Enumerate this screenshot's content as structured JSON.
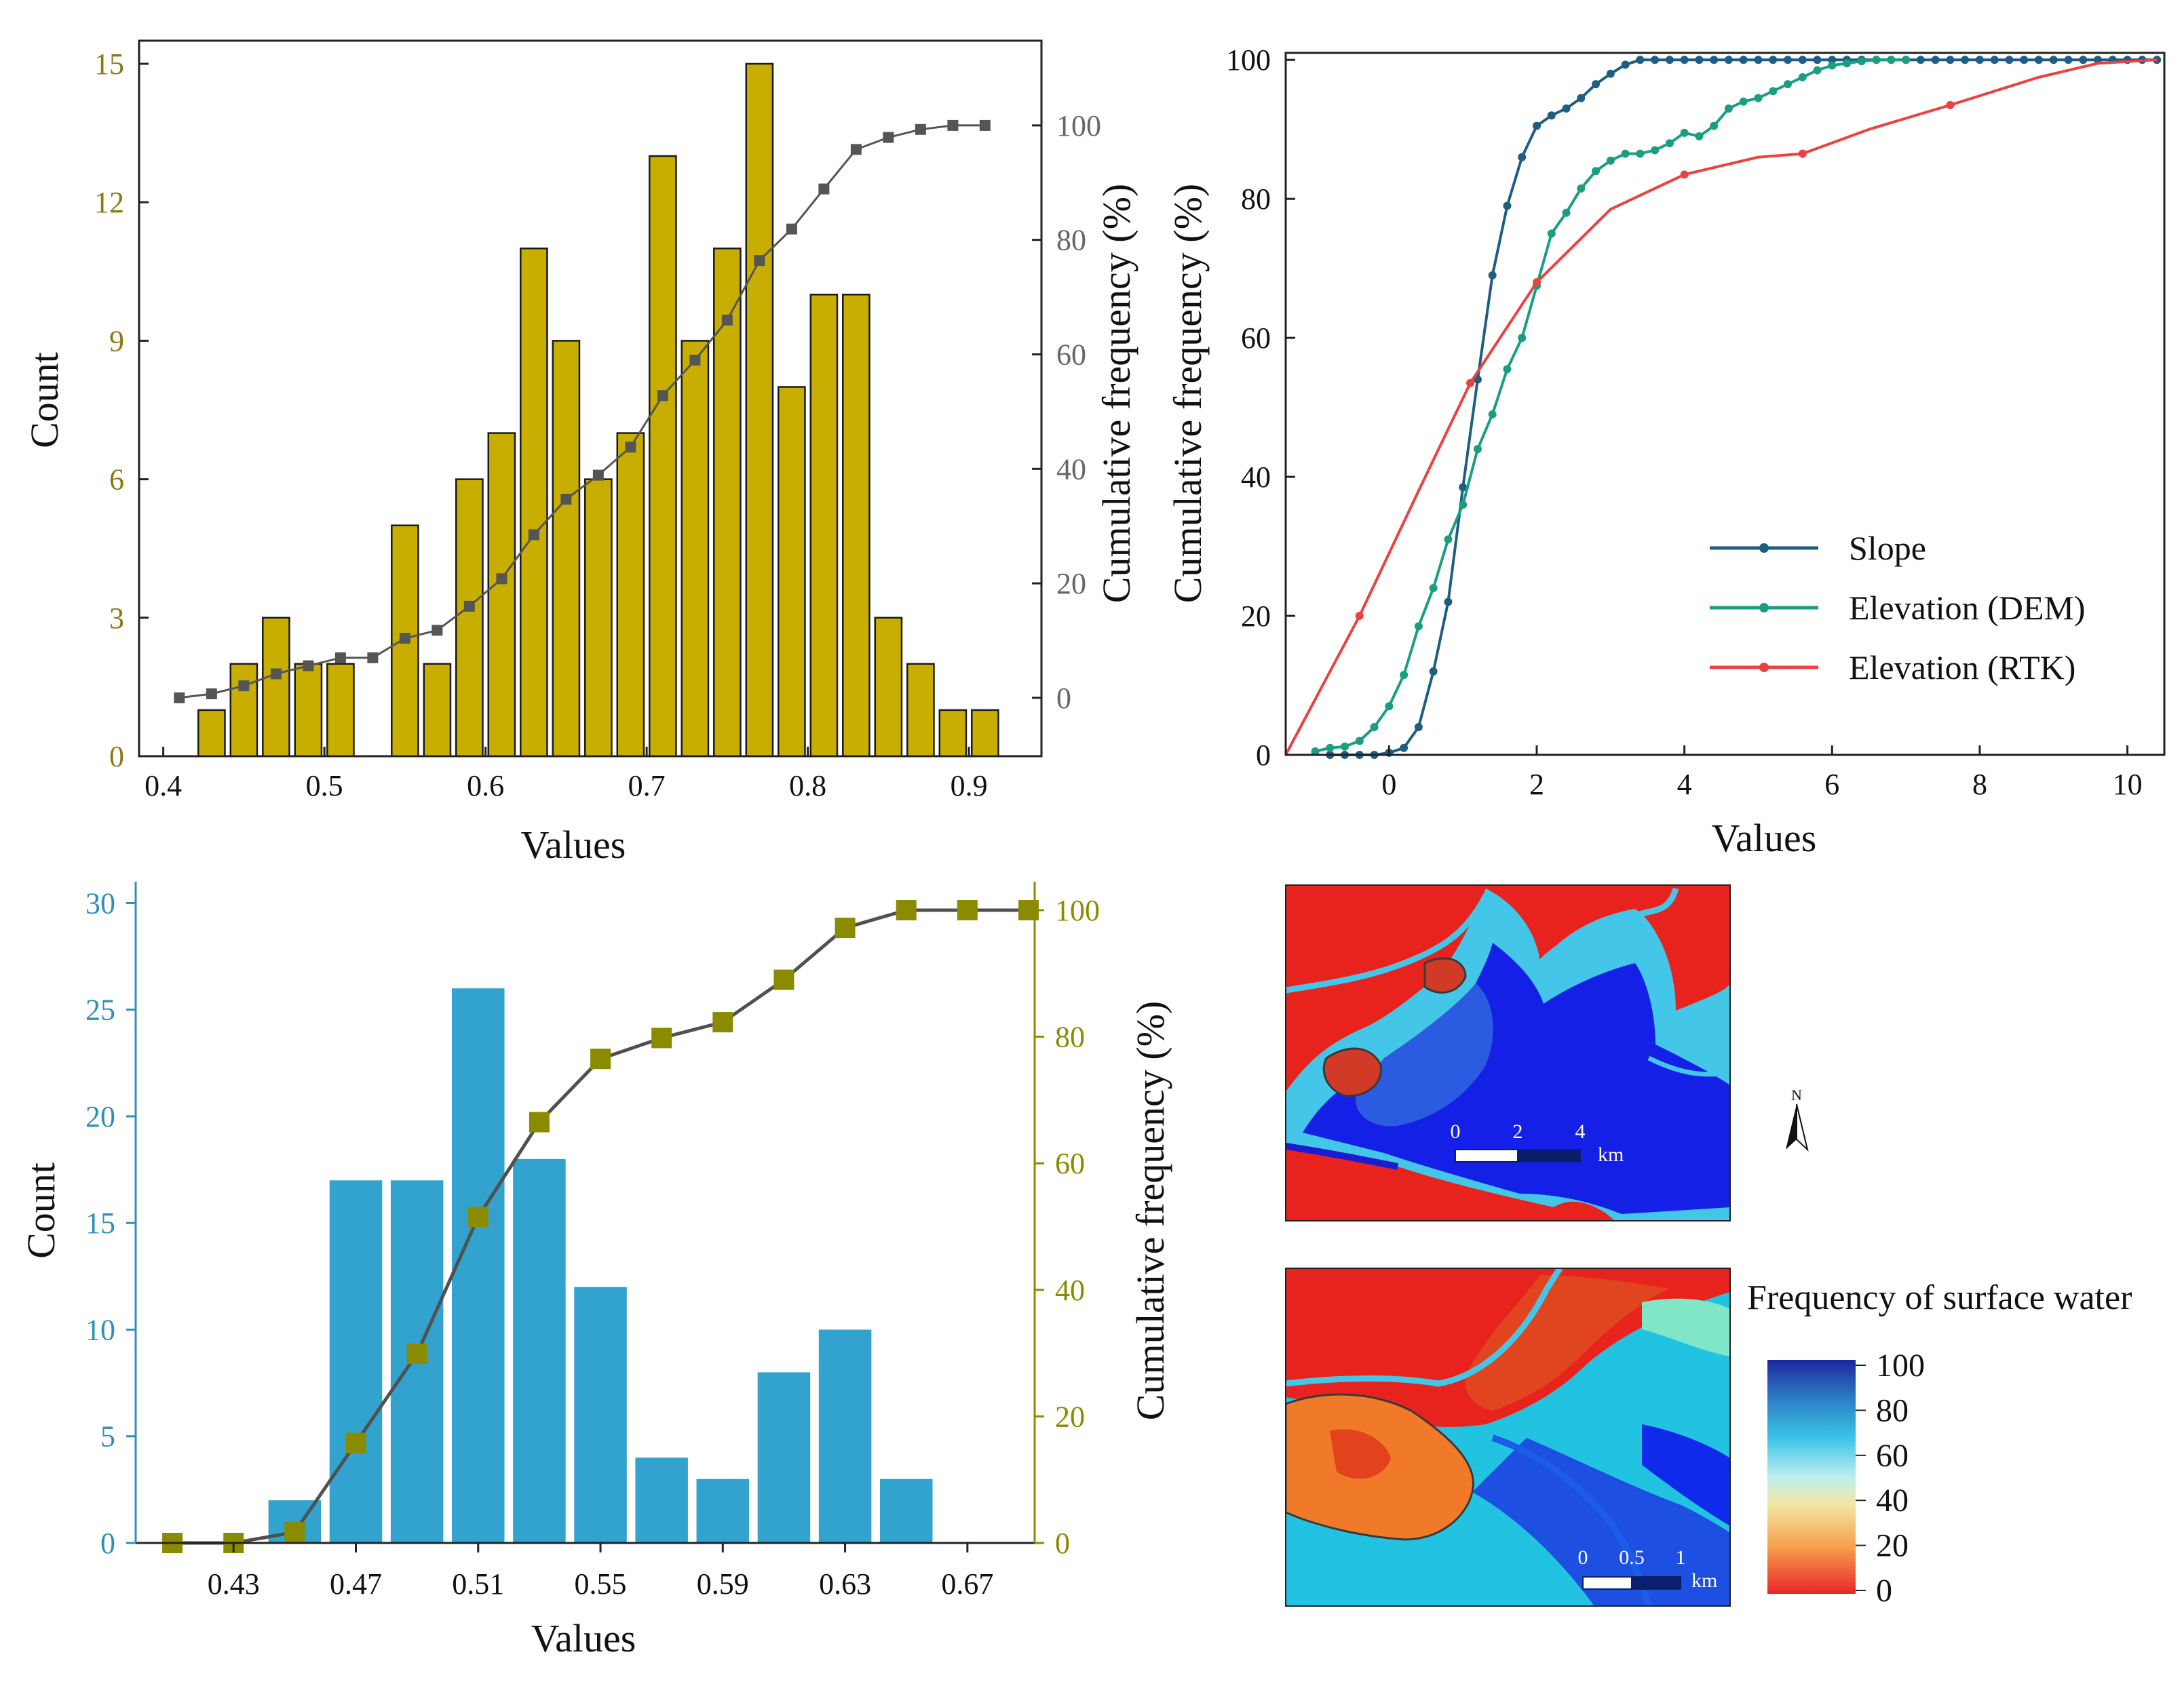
{
  "chart_data": [
    {
      "id": "hist-a",
      "type": "bar",
      "xlabel": "Values",
      "ylabel": "Count",
      "y2label": "Cumulative frequency (%)",
      "xlim": [
        0.385,
        0.945
      ],
      "ylim": [
        0,
        15.5
      ],
      "y2lim": [
        -10.2,
        114.8
      ],
      "xticks": [
        "0.4",
        "0.5",
        "0.6",
        "0.7",
        "0.8",
        "0.9"
      ],
      "xtick_values": [
        0.4,
        0.5,
        0.6,
        0.7,
        0.8,
        0.9
      ],
      "yticks": [
        "0",
        "3",
        "6",
        "9",
        "12",
        "15"
      ],
      "ytick_values": [
        0,
        3,
        6,
        9,
        12,
        15
      ],
      "y2ticks": [
        "0",
        "20",
        "40",
        "60",
        "80",
        "100"
      ],
      "y2tick_values": [
        0,
        20,
        40,
        60,
        80,
        100
      ],
      "colors": {
        "bar": "#C8AE00",
        "line": "#555555",
        "axis_left": "#8A7A10",
        "axis_right": "#666666",
        "frame": "#222222"
      },
      "bar_width": 0.0165,
      "bars": {
        "x": [
          0.43,
          0.45,
          0.47,
          0.49,
          0.51,
          0.55,
          0.57,
          0.59,
          0.61,
          0.63,
          0.65,
          0.67,
          0.69,
          0.71,
          0.73,
          0.75,
          0.77,
          0.79,
          0.81,
          0.83,
          0.85,
          0.87,
          0.89,
          0.91
        ],
        "values": [
          1,
          2,
          3,
          2,
          2,
          5,
          2,
          6,
          7,
          11,
          9,
          6,
          7,
          13,
          9,
          11,
          15,
          8,
          10,
          10,
          3,
          2,
          1,
          1
        ]
      },
      "cumulative": {
        "x": [
          0.41,
          0.43,
          0.45,
          0.47,
          0.49,
          0.51,
          0.53,
          0.55,
          0.57,
          0.59,
          0.61,
          0.63,
          0.65,
          0.67,
          0.69,
          0.71,
          0.73,
          0.75,
          0.77,
          0.79,
          0.81,
          0.83,
          0.85,
          0.87,
          0.89,
          0.91
        ],
        "values": [
          0,
          0.7,
          2.1,
          4.2,
          5.6,
          7.0,
          7.0,
          10.4,
          11.8,
          16.0,
          20.8,
          28.5,
          34.7,
          38.9,
          43.8,
          52.8,
          59.0,
          66.0,
          76.4,
          81.9,
          88.9,
          95.8,
          97.9,
          99.3,
          100,
          100
        ]
      }
    },
    {
      "id": "cdf-b",
      "type": "line",
      "xlabel": "Values",
      "ylabel": "Cumulative frequency (%)",
      "xlim": [
        -1.4,
        10.5
      ],
      "ylim": [
        0,
        101
      ],
      "xticks": [
        "0",
        "2",
        "4",
        "6",
        "8",
        "10"
      ],
      "xtick_values": [
        0,
        2,
        4,
        6,
        8,
        10
      ],
      "yticks": [
        "0",
        "20",
        "40",
        "60",
        "80",
        "100"
      ],
      "ytick_values": [
        0,
        20,
        40,
        60,
        80,
        100
      ],
      "legend_position": "lower-right",
      "series": [
        {
          "name": "Slope",
          "color": "#1D5E82",
          "x": [
            -0.8,
            -0.6,
            -0.4,
            -0.2,
            0.0,
            0.2,
            0.4,
            0.6,
            0.8,
            1.0,
            1.2,
            1.4,
            1.6,
            1.8,
            2.0,
            2.2,
            2.4,
            2.6,
            2.8,
            3.0,
            3.2,
            3.4,
            3.6,
            3.8,
            4.0,
            4.2,
            4.4,
            4.6,
            4.8,
            5.0,
            5.2,
            5.4,
            5.6,
            5.8,
            6.0,
            6.2,
            6.4,
            6.6,
            6.8,
            7.0,
            7.2,
            7.4,
            7.6,
            7.8,
            8.0,
            8.2,
            8.4,
            8.6,
            8.8,
            9.0,
            9.2,
            9.4,
            9.6,
            9.8,
            10.0,
            10.2,
            10.4
          ],
          "values": [
            0,
            0,
            0,
            0,
            0.3,
            1.0,
            4.0,
            12.0,
            22.0,
            38.5,
            54.0,
            69.0,
            79.0,
            86.0,
            90.5,
            92.0,
            93.0,
            94.5,
            96.5,
            98.0,
            99.3,
            100,
            100,
            100,
            100,
            100,
            100,
            100,
            100,
            100,
            100,
            100,
            100,
            100,
            100,
            100,
            100,
            100,
            100,
            100,
            100,
            100,
            100,
            100,
            100,
            100,
            100,
            100,
            100,
            100,
            100,
            100,
            100,
            100,
            100,
            100,
            100
          ]
        },
        {
          "name": "Elevation (DEM)",
          "color": "#1A9E82",
          "x": [
            -1.0,
            -0.8,
            -0.6,
            -0.4,
            -0.2,
            0.0,
            0.2,
            0.4,
            0.6,
            0.8,
            1.0,
            1.2,
            1.4,
            1.6,
            1.8,
            2.0,
            2.2,
            2.4,
            2.6,
            2.8,
            3.0,
            3.2,
            3.4,
            3.6,
            3.8,
            4.0,
            4.2,
            4.4,
            4.6,
            4.8,
            5.0,
            5.2,
            5.4,
            5.6,
            5.8,
            6.0,
            6.2,
            6.4,
            6.6,
            6.8,
            7.0
          ],
          "values": [
            0.5,
            1.0,
            1.2,
            2.0,
            4.0,
            7.0,
            11.5,
            18.5,
            24.0,
            31.0,
            36.0,
            44.0,
            49.0,
            55.5,
            60.0,
            67.5,
            75.0,
            78.0,
            81.5,
            84.0,
            85.5,
            86.5,
            86.5,
            87.0,
            88.0,
            89.5,
            89.0,
            90.5,
            93.0,
            94.0,
            94.5,
            95.5,
            96.5,
            97.5,
            98.5,
            99.2,
            99.5,
            99.8,
            100,
            100,
            100
          ]
        },
        {
          "name": "Elevation (RTK)",
          "color": "#EE4040",
          "x": [
            -1.4,
            -0.4,
            0.4,
            1.1,
            2.0,
            3.0,
            4.0,
            5.0,
            5.6,
            6.5,
            7.6,
            8.8,
            9.6,
            10.4
          ],
          "values": [
            0,
            20,
            38,
            53.5,
            68,
            78.5,
            83.5,
            86,
            86.5,
            90,
            93.5,
            97.5,
            99.5,
            100
          ],
          "markers_at": [
            -0.4,
            1.1,
            2.0,
            4.0,
            5.6,
            7.6
          ]
        }
      ]
    },
    {
      "id": "hist-c",
      "type": "bar",
      "xlabel": "Values",
      "ylabel": "Count",
      "y2label": "Cumulative frequency (%)",
      "xlim": [
        0.398,
        0.692
      ],
      "ylim": [
        0,
        31
      ],
      "y2lim": [
        0,
        104.5
      ],
      "xticks": [
        "0.43",
        "0.47",
        "0.51",
        "0.55",
        "0.59",
        "0.63",
        "0.67"
      ],
      "xtick_values": [
        0.43,
        0.47,
        0.51,
        0.55,
        0.59,
        0.63,
        0.67
      ],
      "yticks": [
        "0",
        "5",
        "10",
        "15",
        "20",
        "25",
        "30"
      ],
      "ytick_values": [
        0,
        5,
        10,
        15,
        20,
        25,
        30
      ],
      "y2ticks": [
        "0",
        "20",
        "40",
        "60",
        "80",
        "100"
      ],
      "y2tick_values": [
        0,
        20,
        40,
        60,
        80,
        100
      ],
      "colors": {
        "bar": "#32A3CE",
        "line": "#505050",
        "marker": "#8B8B00",
        "axis_left": "#2F8FB8",
        "axis_right": "#8B8B00",
        "frame": "#222222"
      },
      "bar_width": 0.0172,
      "bars": {
        "x": [
          0.45,
          0.47,
          0.49,
          0.51,
          0.53,
          0.55,
          0.57,
          0.59,
          0.61,
          0.63,
          0.65
        ],
        "values": [
          2,
          17,
          17,
          26,
          18,
          12,
          4,
          3,
          8,
          10,
          3
        ]
      },
      "cumulative": {
        "x": [
          0.41,
          0.43,
          0.45,
          0.47,
          0.49,
          0.51,
          0.53,
          0.55,
          0.57,
          0.59,
          0.61,
          0.63,
          0.65,
          0.67,
          0.69
        ],
        "values": [
          0,
          0,
          1.7,
          15.8,
          29.9,
          51.5,
          66.5,
          76.5,
          79.8,
          82.3,
          89.0,
          97.2,
          100,
          100,
          100
        ]
      }
    },
    {
      "id": "maps-d",
      "type": "heatmap",
      "title": "Frequency of surface water",
      "colorbar_ticks": [
        "100",
        "80",
        "60",
        "40",
        "20",
        "0"
      ],
      "colorbar_values": [
        100,
        80,
        60,
        40,
        20,
        0
      ],
      "colorbar_stops": [
        "#1A27A0",
        "#2E7FC6",
        "#39C3E6",
        "#BEEEF0",
        "#F4E6A2",
        "#F6A04A",
        "#E8262B"
      ],
      "map_top": {
        "scale_labels": [
          "0",
          "2",
          "4"
        ],
        "unit": "km"
      },
      "map_bottom": {
        "scale_labels": [
          "0",
          "0.5",
          "1"
        ],
        "unit": "km"
      },
      "north_label": "N"
    }
  ]
}
